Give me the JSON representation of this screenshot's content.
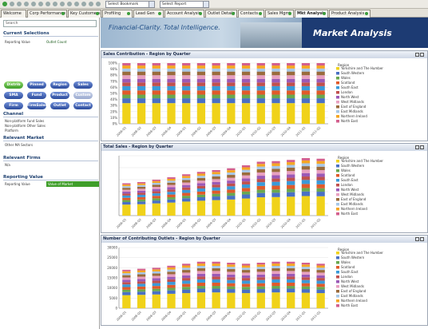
{
  "toolbar": {
    "bookmark_select": "Select Bookmark",
    "report_select": "Select Report"
  },
  "tabs": [
    {
      "label": "Welcome"
    },
    {
      "label": "Corp Performance"
    },
    {
      "label": "Key Customers"
    },
    {
      "label": "Profiling"
    },
    {
      "label": "Lead Gen"
    },
    {
      "label": "Account Analysis"
    },
    {
      "label": "Outlet Details"
    },
    {
      "label": "Contacts"
    },
    {
      "label": "Sales Mgmt"
    },
    {
      "label": "Mkt Analysis"
    },
    {
      "label": "Product Analysis"
    }
  ],
  "sidebar": {
    "search_placeholder": "Search",
    "current_selections_title": "Current Selections",
    "selections": [
      {
        "field": "Reporting Value",
        "value": "Outlet Count"
      }
    ],
    "buttons": [
      "Distrib",
      "Pinned",
      "Region",
      "Sales",
      "SMA",
      "Fund",
      "Product",
      "Custom",
      "Firm",
      "FirmSales",
      "Outlet",
      "Contact"
    ],
    "channel_title": "Channel",
    "channels": [
      "Non-platform Fund Sales",
      "Non-platform Other Sales",
      "Platform"
    ],
    "relevant_market_title": "Relevant Market",
    "relevant_market_values": [
      "Other MA Sectors"
    ],
    "relevant_firms_title": "Relevant Firms",
    "relevant_firms_values": [
      "N/a"
    ],
    "reporting_value_title": "Reporting Value",
    "reporting_value_label": "Reporting Value",
    "reporting_value_selected": "Value of Market"
  },
  "banner": {
    "slogan": "Financial-Clarity. Total Intelligence.",
    "title": "Market Analysis"
  },
  "colors": {
    "legend": [
      "#f0d21a",
      "#4a70c4",
      "#6aa84f",
      "#e05a2a",
      "#3a9ad9",
      "#c0504d",
      "#9b59b6",
      "#e8a0c0",
      "#9a6b3c",
      "#a7c7e7",
      "#f5a623",
      "#d35f8d"
    ]
  },
  "legend_labels": [
    "Yorkshire and The Humber",
    "South Western",
    "Wales",
    "Scotland",
    "South East",
    "London",
    "North West",
    "West Midlands",
    "East of England",
    "East Midlands",
    "Northern Ireland",
    "North East"
  ],
  "panels": [
    {
      "title": "Sales Contribution - Region by Quarter",
      "legend_title": "Region",
      "legend_labels_shown": 12
    },
    {
      "title": "Total Sales - Region by Quarter",
      "legend_title": "Region",
      "legend_labels_shown": 12
    },
    {
      "title": "Number of Contributing Outlets - Region by Quarter",
      "legend_title": "Region",
      "legend_labels_shown": 12
    }
  ],
  "chart_data": [
    {
      "type": "bar",
      "title": "Sales Contribution - Region by Quarter",
      "stacked": true,
      "categories": [
        "2008-Q1",
        "2008-Q2",
        "2008-Q3",
        "2008-Q4",
        "2009-Q1",
        "2009-Q2",
        "2009-Q3",
        "2009-Q4",
        "2010-Q1",
        "2010-Q2",
        "2010-Q3",
        "2010-Q4",
        "2011-Q1",
        "2011-Q2"
      ],
      "ylim": [
        0,
        100
      ],
      "ytick_labels": [
        "0%",
        "10%",
        "20%",
        "30%",
        "40%",
        "50%",
        "60%",
        "70%",
        "80%",
        "90%",
        "100%"
      ],
      "totals": [
        100,
        100,
        100,
        100,
        100,
        100,
        100,
        100,
        100,
        100,
        100,
        100,
        100,
        100
      ]
    },
    {
      "type": "bar",
      "title": "Total Sales - Region by Quarter",
      "stacked": true,
      "categories": [
        "2008-Q1",
        "2008-Q2",
        "2008-Q3",
        "2008-Q4",
        "2009-Q1",
        "2009-Q2",
        "2009-Q3",
        "2009-Q4",
        "2010-Q1",
        "2010-Q2",
        "2010-Q3",
        "2010-Q4",
        "2011-Q1",
        "2011-Q2"
      ],
      "ylim": [
        0,
        10
      ],
      "totals": [
        5.4,
        5.6,
        6.0,
        6.4,
        6.9,
        7.3,
        7.6,
        7.9,
        8.4,
        9.0,
        9.1,
        9.3,
        9.6,
        9.5
      ]
    },
    {
      "type": "bar",
      "title": "Number of Contributing Outlets - Region by Quarter",
      "stacked": true,
      "categories": [
        "2008-Q1",
        "2008-Q2",
        "2008-Q3",
        "2008-Q4",
        "2009-Q1",
        "2009-Q2",
        "2009-Q3",
        "2009-Q4",
        "2010-Q1",
        "2010-Q2",
        "2010-Q3",
        "2010-Q4",
        "2011-Q1",
        "2011-Q2"
      ],
      "ylim": [
        0,
        30000
      ],
      "ytick_labels": [
        "0",
        "5000",
        "10000",
        "15000",
        "20000",
        "25000",
        "30000"
      ],
      "totals": [
        19000,
        19500,
        20000,
        21000,
        22000,
        23000,
        23000,
        22500,
        22000,
        22500,
        23000,
        23000,
        22500,
        22000
      ]
    }
  ]
}
